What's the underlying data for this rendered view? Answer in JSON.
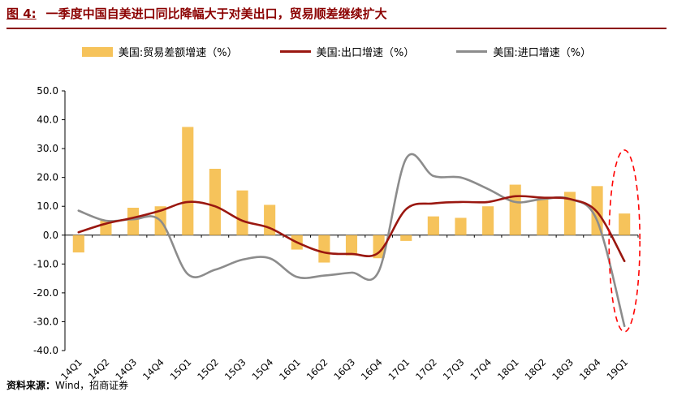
{
  "header": {
    "figure_label": "图 4:",
    "title": "一季度中国自美进口同比降幅大于对美出口，贸易顺差继续扩大"
  },
  "footer": {
    "source_label": "资料来源：",
    "source_text": "Wind，招商证券"
  },
  "colors": {
    "title": "#8B0000",
    "header_rule": "#8B0000",
    "axis": "#000000",
    "background": "#FFFFFF",
    "bar": "#F6C35B",
    "export_line": "#9A1710",
    "import_line": "#8C8C8C",
    "highlight": "#FF0000"
  },
  "chart_data": {
    "type": "bar",
    "subtype": "combo-bar-and-lines",
    "categories": [
      "14Q1",
      "14Q2",
      "14Q3",
      "14Q4",
      "15Q1",
      "15Q2",
      "15Q3",
      "15Q4",
      "16Q1",
      "16Q2",
      "16Q3",
      "16Q4",
      "17Q1",
      "17Q2",
      "17Q3",
      "17Q4",
      "18Q1",
      "18Q2",
      "18Q3",
      "18Q4",
      "19Q1"
    ],
    "series": [
      {
        "name": "美国:贸易差额增速（%）",
        "type": "bar",
        "color": "#F6C35B",
        "values": [
          -6,
          5,
          9.5,
          10,
          37.5,
          23,
          15.5,
          10.5,
          -5,
          -9.5,
          -7,
          -8,
          -2,
          6.5,
          6,
          10,
          17.5,
          12.5,
          15,
          17,
          7.5
        ]
      },
      {
        "name": "美国:出口增速（%）",
        "type": "line",
        "color": "#9A1710",
        "values": [
          1,
          4,
          6,
          8.5,
          11.5,
          10,
          5,
          2.5,
          -2.5,
          -6,
          -6.5,
          -6,
          9,
          11,
          11.5,
          11.5,
          13.5,
          13,
          12.5,
          8,
          -9
        ]
      },
      {
        "name": "美国:进口增速（%）",
        "type": "line",
        "color": "#8C8C8C",
        "values": [
          8.5,
          5,
          5.5,
          5,
          -13.5,
          -12,
          -8.5,
          -8,
          -14.5,
          -14,
          -13,
          -12.5,
          26.5,
          20.5,
          20,
          16,
          11.5,
          12.5,
          12.5,
          5,
          -31.5
        ]
      }
    ],
    "title": "一季度中国自美进口同比降幅大于对美出口，贸易顺差继续扩大",
    "xlabel": "",
    "ylabel": "",
    "ylim": [
      -40,
      50
    ],
    "yticks": [
      "50.0",
      "40.0",
      "30.0",
      "20.0",
      "10.0",
      "0.0",
      "-10.0",
      "-20.0",
      "-30.0",
      "-40.0"
    ],
    "grid": false,
    "legend_position": "top",
    "annotation": {
      "type": "dashed-ellipse",
      "color": "#FF0000",
      "category": "19Q1",
      "note": "红色虚线椭圆圈出19Q1进出口增速大幅下滑"
    }
  }
}
